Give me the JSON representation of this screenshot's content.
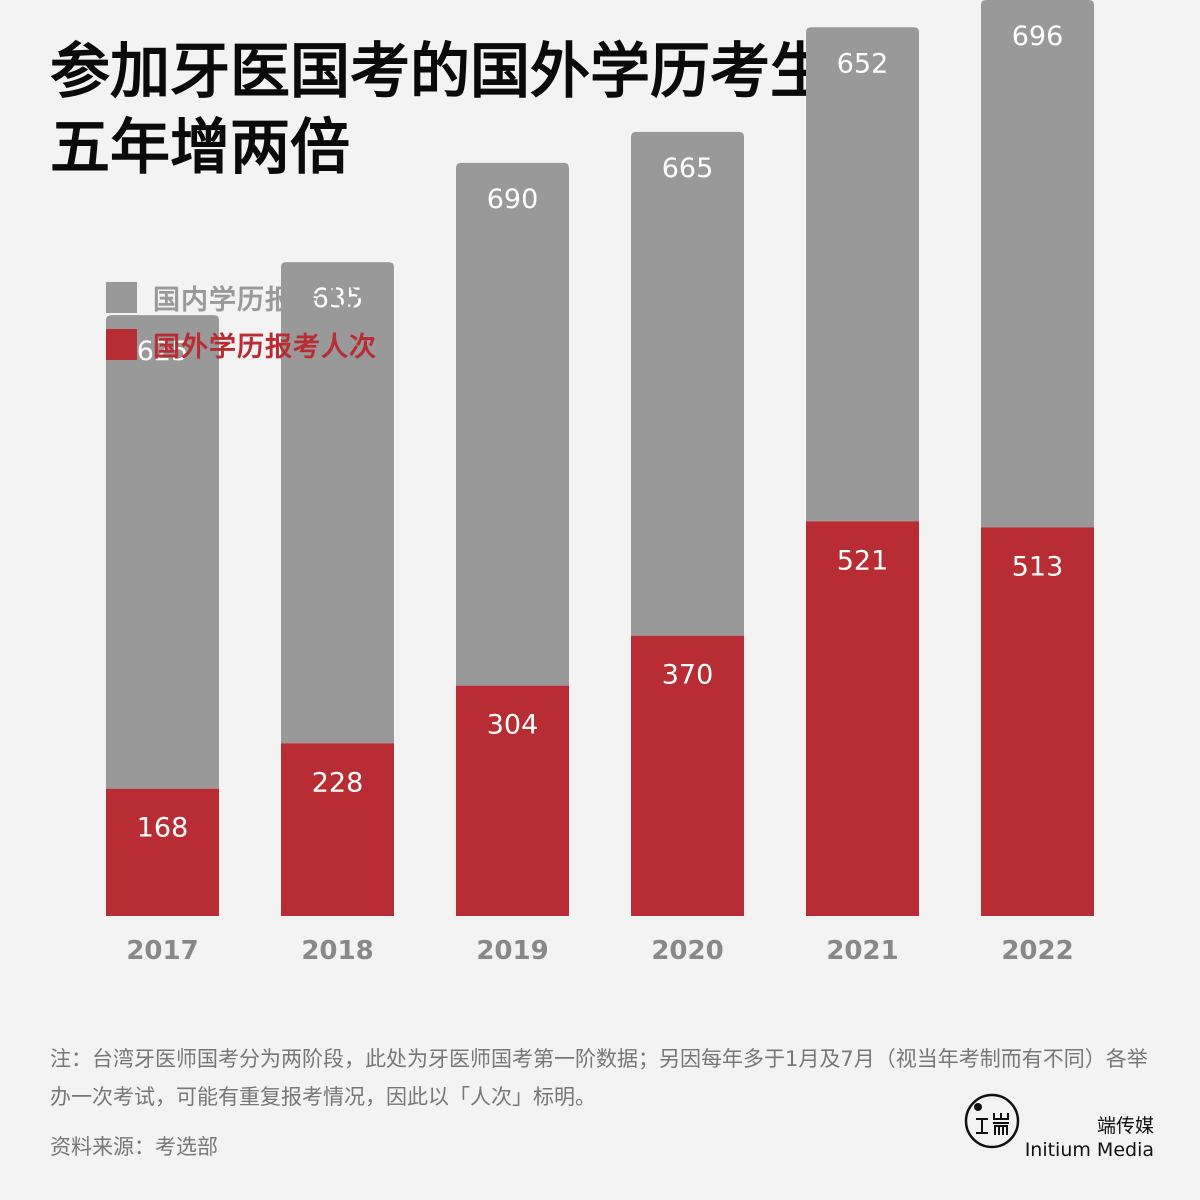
{
  "title_line1": "参加牙医国考的国外学历考生，",
  "title_line2": "五年增两倍",
  "legend": [
    {
      "label": "国内学历报考人次",
      "color": "#999999"
    },
    {
      "label": "国外学历报考人次",
      "color": "#b72d33"
    }
  ],
  "chart_data": {
    "type": "bar",
    "stacked": true,
    "categories": [
      "2017",
      "2018",
      "2019",
      "2020",
      "2021",
      "2022"
    ],
    "series": [
      {
        "name": "国外学历报考人次",
        "color": "#b72d33",
        "values": [
          168,
          228,
          304,
          370,
          521,
          513
        ]
      },
      {
        "name": "国内学历报考人次",
        "color": "#999999",
        "values": [
          625,
          635,
          690,
          665,
          652,
          696
        ]
      }
    ],
    "ylim": [
      0,
      1209
    ],
    "grid": false,
    "legend_position": "top-left",
    "xlabel": "",
    "ylabel": ""
  },
  "note": "注：台湾牙医师国考分为两阶段，此处为牙医师国考第一阶数据；另因每年多于1月及7月（视当年考制而有不同）各举办一次考试，可能有重复报考情况，因此以「人次」标明。",
  "source": "资料来源：考选部",
  "brand": {
    "name_cn": "端传媒",
    "name_en": "Initium Media",
    "logo_icon": "initium-logo-icon"
  }
}
